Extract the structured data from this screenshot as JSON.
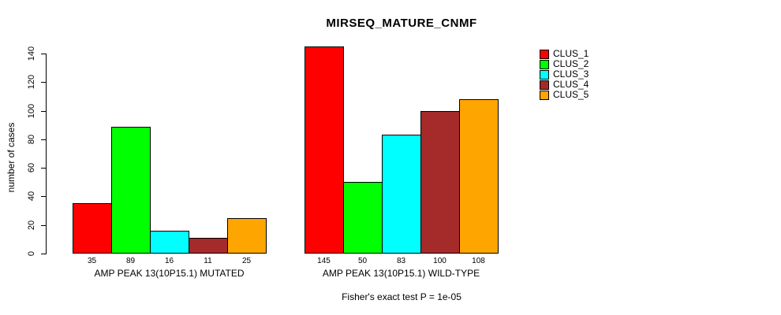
{
  "chart_data": {
    "type": "bar",
    "title": "MIRSEQ_MATURE_CNMF",
    "ylabel": "number of cases",
    "xlabel": "",
    "ylim": [
      0,
      140
    ],
    "yticks": [
      0,
      20,
      40,
      60,
      80,
      100,
      120,
      140
    ],
    "grid": false,
    "bar_value_labels": true,
    "legend_position": "topright",
    "series": [
      {
        "label": "CLUS_1",
        "color": "#FF0000"
      },
      {
        "label": "CLUS_2",
        "color": "#00FF00"
      },
      {
        "label": "CLUS_3",
        "color": "#00FFFF"
      },
      {
        "label": "CLUS_4",
        "color": "#A52A2A"
      },
      {
        "label": "CLUS_5",
        "color": "#FFA500"
      }
    ],
    "groups": [
      {
        "label": "AMP PEAK 13(10P15.1) MUTATED",
        "values": [
          35,
          89,
          16,
          11,
          25
        ]
      },
      {
        "label": "AMP PEAK 13(10P15.1) WILD-TYPE",
        "values": [
          145,
          50,
          83,
          100,
          108
        ]
      }
    ],
    "annotation": "Fisher's exact test P = 1e-05",
    "colors": {
      "background": "#FFFFFF",
      "axis": "#000000",
      "bar_border": "#000000"
    }
  }
}
